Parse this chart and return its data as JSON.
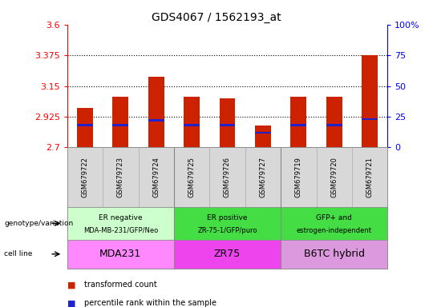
{
  "title": "GDS4067 / 1562193_at",
  "samples": [
    "GSM679722",
    "GSM679723",
    "GSM679724",
    "GSM679725",
    "GSM679726",
    "GSM679727",
    "GSM679719",
    "GSM679720",
    "GSM679721"
  ],
  "transformed_count": [
    2.99,
    3.07,
    3.22,
    3.07,
    3.06,
    2.86,
    3.07,
    3.07,
    3.375
  ],
  "percentile_rank": [
    18,
    18,
    22,
    18,
    18,
    12,
    18,
    18,
    23
  ],
  "ymin": 2.7,
  "ymax": 3.6,
  "yticks": [
    2.7,
    2.925,
    3.15,
    3.375,
    3.6
  ],
  "pct_ticks": [
    0,
    25,
    50,
    75,
    100
  ],
  "bar_color": "#cc2200",
  "pct_color": "#2222cc",
  "bg_color": "#ffffff",
  "geno_colors": [
    "#ccffcc",
    "#44dd44",
    "#44dd44"
  ],
  "cell_colors": [
    "#ff88ff",
    "#ee44ee",
    "#dd99dd"
  ],
  "geno_labels_line1": [
    "ER negative",
    "ER positive",
    "GFP+ and"
  ],
  "geno_labels_line2": [
    "MDA-MB-231/GFP/Neo",
    "ZR-75-1/GFP/puro",
    "estrogen-independent"
  ],
  "cell_labels": [
    "MDA231",
    "ZR75",
    "B6TC hybrid"
  ],
  "group_starts": [
    0,
    3,
    6
  ],
  "group_ends": [
    3,
    6,
    9
  ]
}
